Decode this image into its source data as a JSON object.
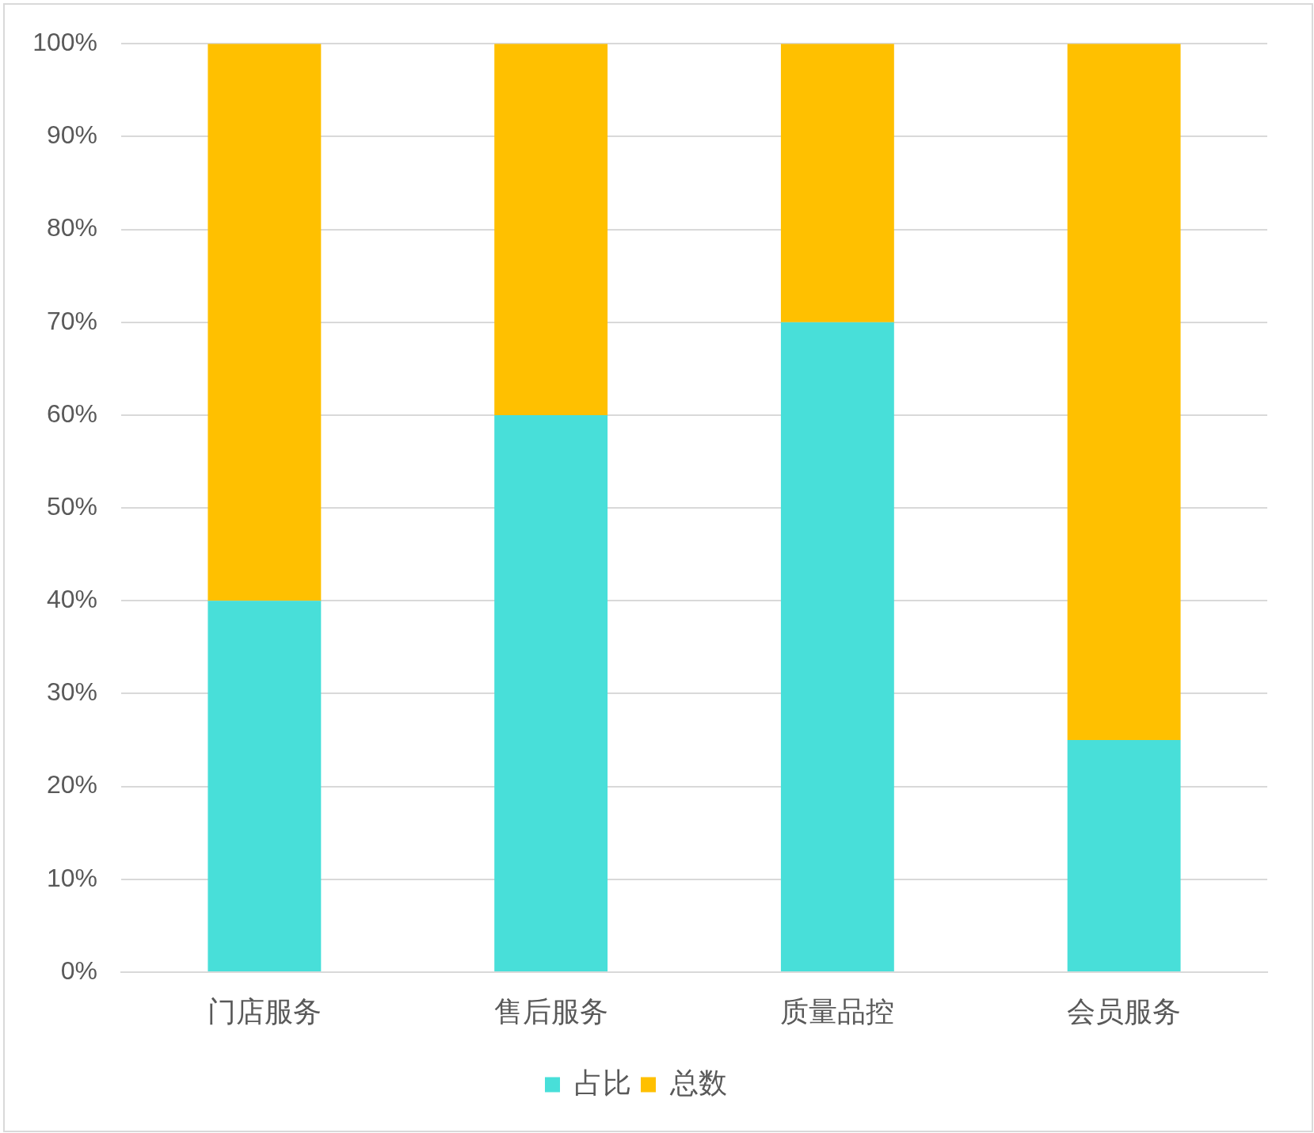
{
  "chart_data": {
    "type": "bar",
    "stacked": true,
    "categories": [
      "门店服务",
      "售后服务",
      "质量品控",
      "会员服务"
    ],
    "series": [
      {
        "name": "占比",
        "color": "#48dfd9",
        "values": [
          40,
          60,
          70,
          25
        ]
      },
      {
        "name": "总数",
        "color": "#ffc000",
        "values": [
          60,
          40,
          30,
          75
        ]
      }
    ],
    "ylim": [
      0,
      100
    ],
    "yticks": [
      {
        "value": 0,
        "label": "0%"
      },
      {
        "value": 10,
        "label": "10%"
      },
      {
        "value": 20,
        "label": "20%"
      },
      {
        "value": 30,
        "label": "30%"
      },
      {
        "value": 40,
        "label": "40%"
      },
      {
        "value": 50,
        "label": "50%"
      },
      {
        "value": 60,
        "label": "60%"
      },
      {
        "value": 70,
        "label": "70%"
      },
      {
        "value": 80,
        "label": "80%"
      },
      {
        "value": 90,
        "label": "90%"
      },
      {
        "value": 100,
        "label": "100%"
      }
    ],
    "grid": "y",
    "legend": "bottom"
  }
}
